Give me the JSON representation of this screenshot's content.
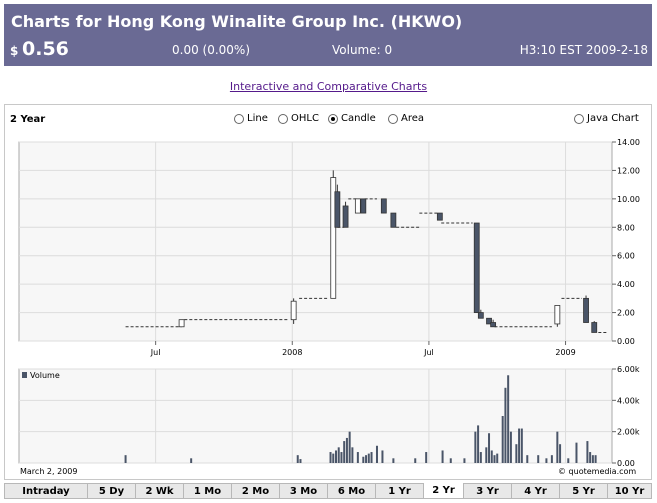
{
  "header": {
    "title": "Charts for Hong Kong Winalite Group Inc.  (HKWO)",
    "currency": "$",
    "price": "0.56",
    "change": "0.00 (0.00%)",
    "volume": "Volume: 0",
    "timestamp": "H3:10 EST 2009-2-18"
  },
  "link_label": "Interactive and Comparative Charts",
  "toolbar": {
    "period": "2 Year",
    "options": [
      {
        "label": "Line",
        "selected": false
      },
      {
        "label": "OHLC",
        "selected": false
      },
      {
        "label": "Candle",
        "selected": true
      },
      {
        "label": "Area",
        "selected": false
      }
    ],
    "java": {
      "label": "Java Chart",
      "selected": false
    }
  },
  "footer": {
    "date": "March 2, 2009",
    "credit": "© quotemedia.com"
  },
  "tabs": [
    {
      "label": "Intraday",
      "active": false
    },
    {
      "label": "5 Dy",
      "active": false
    },
    {
      "label": "2 Wk",
      "active": false
    },
    {
      "label": "1 Mo",
      "active": false
    },
    {
      "label": "2 Mo",
      "active": false
    },
    {
      "label": "3 Mo",
      "active": false
    },
    {
      "label": "6 Mo",
      "active": false
    },
    {
      "label": "1 Yr",
      "active": false
    },
    {
      "label": "2 Yr",
      "active": true
    },
    {
      "label": "3 Yr",
      "active": false
    },
    {
      "label": "4 Yr",
      "active": false
    },
    {
      "label": "5 Yr",
      "active": false
    },
    {
      "label": "10 Yr",
      "active": false
    }
  ],
  "chart_data": [
    {
      "type": "candlestick",
      "x_ticks": [
        {
          "label": "Jul",
          "t": 0.5
        },
        {
          "label": "2008",
          "t": 1.0
        },
        {
          "label": "Jul",
          "t": 1.5
        },
        {
          "label": "2009",
          "t": 2.0
        }
      ],
      "x_range": [
        0.0,
        2.17
      ],
      "ylim": [
        0,
        14
      ],
      "y_ticks": [
        "0.00",
        "2.00",
        "4.00",
        "6.00",
        "8.00",
        "10.00",
        "12.00",
        "14.00"
      ],
      "y_tick_values": [
        0,
        2,
        4,
        6,
        8,
        10,
        12,
        14
      ],
      "grid": true,
      "flat_segments": [
        {
          "t0": 0.39,
          "t1": 0.595,
          "price": 1.0
        },
        {
          "t0": 0.605,
          "t1": 0.985,
          "price": 1.5
        },
        {
          "t0": 1.025,
          "t1": 1.13,
          "price": 3.0
        },
        {
          "t0": 1.165,
          "t1": 1.19,
          "price": 8.0
        },
        {
          "t0": 1.205,
          "t1": 1.235,
          "price": 10.0
        },
        {
          "t0": 1.265,
          "t1": 1.31,
          "price": 10.0
        },
        {
          "t0": 1.38,
          "t1": 1.465,
          "price": 8.0
        },
        {
          "t0": 1.465,
          "t1": 1.53,
          "price": 9.0
        },
        {
          "t0": 1.545,
          "t1": 1.66,
          "price": 8.3
        },
        {
          "t0": 1.74,
          "t1": 1.95,
          "price": 1.0
        },
        {
          "t0": 1.985,
          "t1": 2.06,
          "price": 3.0
        },
        {
          "t0": 2.12,
          "t1": 2.15,
          "price": 0.6
        }
      ],
      "candles": [
        {
          "t": 0.595,
          "o": 1.0,
          "h": 1.5,
          "l": 1.0,
          "c": 1.5
        },
        {
          "t": 1.005,
          "o": 1.5,
          "h": 3.0,
          "l": 1.2,
          "c": 2.8
        },
        {
          "t": 1.15,
          "o": 3.0,
          "h": 12.0,
          "l": 3.0,
          "c": 11.5
        },
        {
          "t": 1.165,
          "o": 10.5,
          "h": 11.0,
          "l": 8.0,
          "c": 8.0
        },
        {
          "t": 1.195,
          "o": 9.5,
          "h": 9.8,
          "l": 8.0,
          "c": 8.0
        },
        {
          "t": 1.24,
          "o": 9.0,
          "h": 10.0,
          "l": 9.0,
          "c": 10.0
        },
        {
          "t": 1.26,
          "o": 10.0,
          "h": 10.0,
          "l": 9.0,
          "c": 9.0
        },
        {
          "t": 1.335,
          "o": 10.0,
          "h": 10.0,
          "l": 9.0,
          "c": 9.0
        },
        {
          "t": 1.37,
          "o": 9.0,
          "h": 9.0,
          "l": 8.0,
          "c": 8.0
        },
        {
          "t": 1.54,
          "o": 9.0,
          "h": 9.0,
          "l": 8.5,
          "c": 8.5
        },
        {
          "t": 1.675,
          "o": 8.3,
          "h": 8.3,
          "l": 2.0,
          "c": 2.0
        },
        {
          "t": 1.69,
          "o": 2.0,
          "h": 2.2,
          "l": 1.6,
          "c": 1.6
        },
        {
          "t": 1.72,
          "o": 1.6,
          "h": 1.6,
          "l": 1.2,
          "c": 1.2
        },
        {
          "t": 1.735,
          "o": 1.3,
          "h": 1.5,
          "l": 1.0,
          "c": 1.0
        },
        {
          "t": 1.97,
          "o": 1.2,
          "h": 2.5,
          "l": 1.0,
          "c": 2.5
        },
        {
          "t": 2.075,
          "o": 3.0,
          "h": 3.2,
          "l": 1.3,
          "c": 1.3
        },
        {
          "t": 2.105,
          "o": 1.3,
          "h": 1.4,
          "l": 0.6,
          "c": 0.6
        }
      ]
    },
    {
      "type": "bar",
      "legend": "Volume",
      "ylim": [
        0,
        6000
      ],
      "y_ticks": [
        "0.00",
        "2.00k",
        "4.00k",
        "6.00k"
      ],
      "y_tick_values": [
        0,
        2000,
        4000,
        6000
      ],
      "points": [
        {
          "t": 0.39,
          "v": 500
        },
        {
          "t": 0.63,
          "v": 300
        },
        {
          "t": 1.02,
          "v": 500
        },
        {
          "t": 1.03,
          "v": 250
        },
        {
          "t": 1.14,
          "v": 700
        },
        {
          "t": 1.15,
          "v": 600
        },
        {
          "t": 1.16,
          "v": 800
        },
        {
          "t": 1.17,
          "v": 1000
        },
        {
          "t": 1.18,
          "v": 700
        },
        {
          "t": 1.19,
          "v": 1400
        },
        {
          "t": 1.2,
          "v": 1600
        },
        {
          "t": 1.21,
          "v": 2000
        },
        {
          "t": 1.22,
          "v": 1000
        },
        {
          "t": 1.24,
          "v": 700
        },
        {
          "t": 1.26,
          "v": 400
        },
        {
          "t": 1.27,
          "v": 500
        },
        {
          "t": 1.28,
          "v": 600
        },
        {
          "t": 1.29,
          "v": 700
        },
        {
          "t": 1.31,
          "v": 1100
        },
        {
          "t": 1.33,
          "v": 800
        },
        {
          "t": 1.37,
          "v": 300
        },
        {
          "t": 1.45,
          "v": 300
        },
        {
          "t": 1.49,
          "v": 700
        },
        {
          "t": 1.55,
          "v": 800
        },
        {
          "t": 1.58,
          "v": 300
        },
        {
          "t": 1.63,
          "v": 300
        },
        {
          "t": 1.67,
          "v": 2000
        },
        {
          "t": 1.68,
          "v": 2400
        },
        {
          "t": 1.69,
          "v": 700
        },
        {
          "t": 1.71,
          "v": 1000
        },
        {
          "t": 1.72,
          "v": 1900
        },
        {
          "t": 1.73,
          "v": 800
        },
        {
          "t": 1.74,
          "v": 500
        },
        {
          "t": 1.75,
          "v": 600
        },
        {
          "t": 1.77,
          "v": 3000
        },
        {
          "t": 1.78,
          "v": 4800
        },
        {
          "t": 1.79,
          "v": 5600
        },
        {
          "t": 1.8,
          "v": 2000
        },
        {
          "t": 1.82,
          "v": 1200
        },
        {
          "t": 1.83,
          "v": 2200
        },
        {
          "t": 1.84,
          "v": 2200
        },
        {
          "t": 1.86,
          "v": 500
        },
        {
          "t": 1.9,
          "v": 500
        },
        {
          "t": 1.93,
          "v": 300
        },
        {
          "t": 1.95,
          "v": 500
        },
        {
          "t": 1.97,
          "v": 2000
        },
        {
          "t": 1.98,
          "v": 1200
        },
        {
          "t": 2.01,
          "v": 300
        },
        {
          "t": 2.04,
          "v": 1300
        },
        {
          "t": 2.08,
          "v": 1400
        },
        {
          "t": 2.09,
          "v": 700
        },
        {
          "t": 2.1,
          "v": 500
        },
        {
          "t": 2.11,
          "v": 500
        }
      ]
    }
  ]
}
